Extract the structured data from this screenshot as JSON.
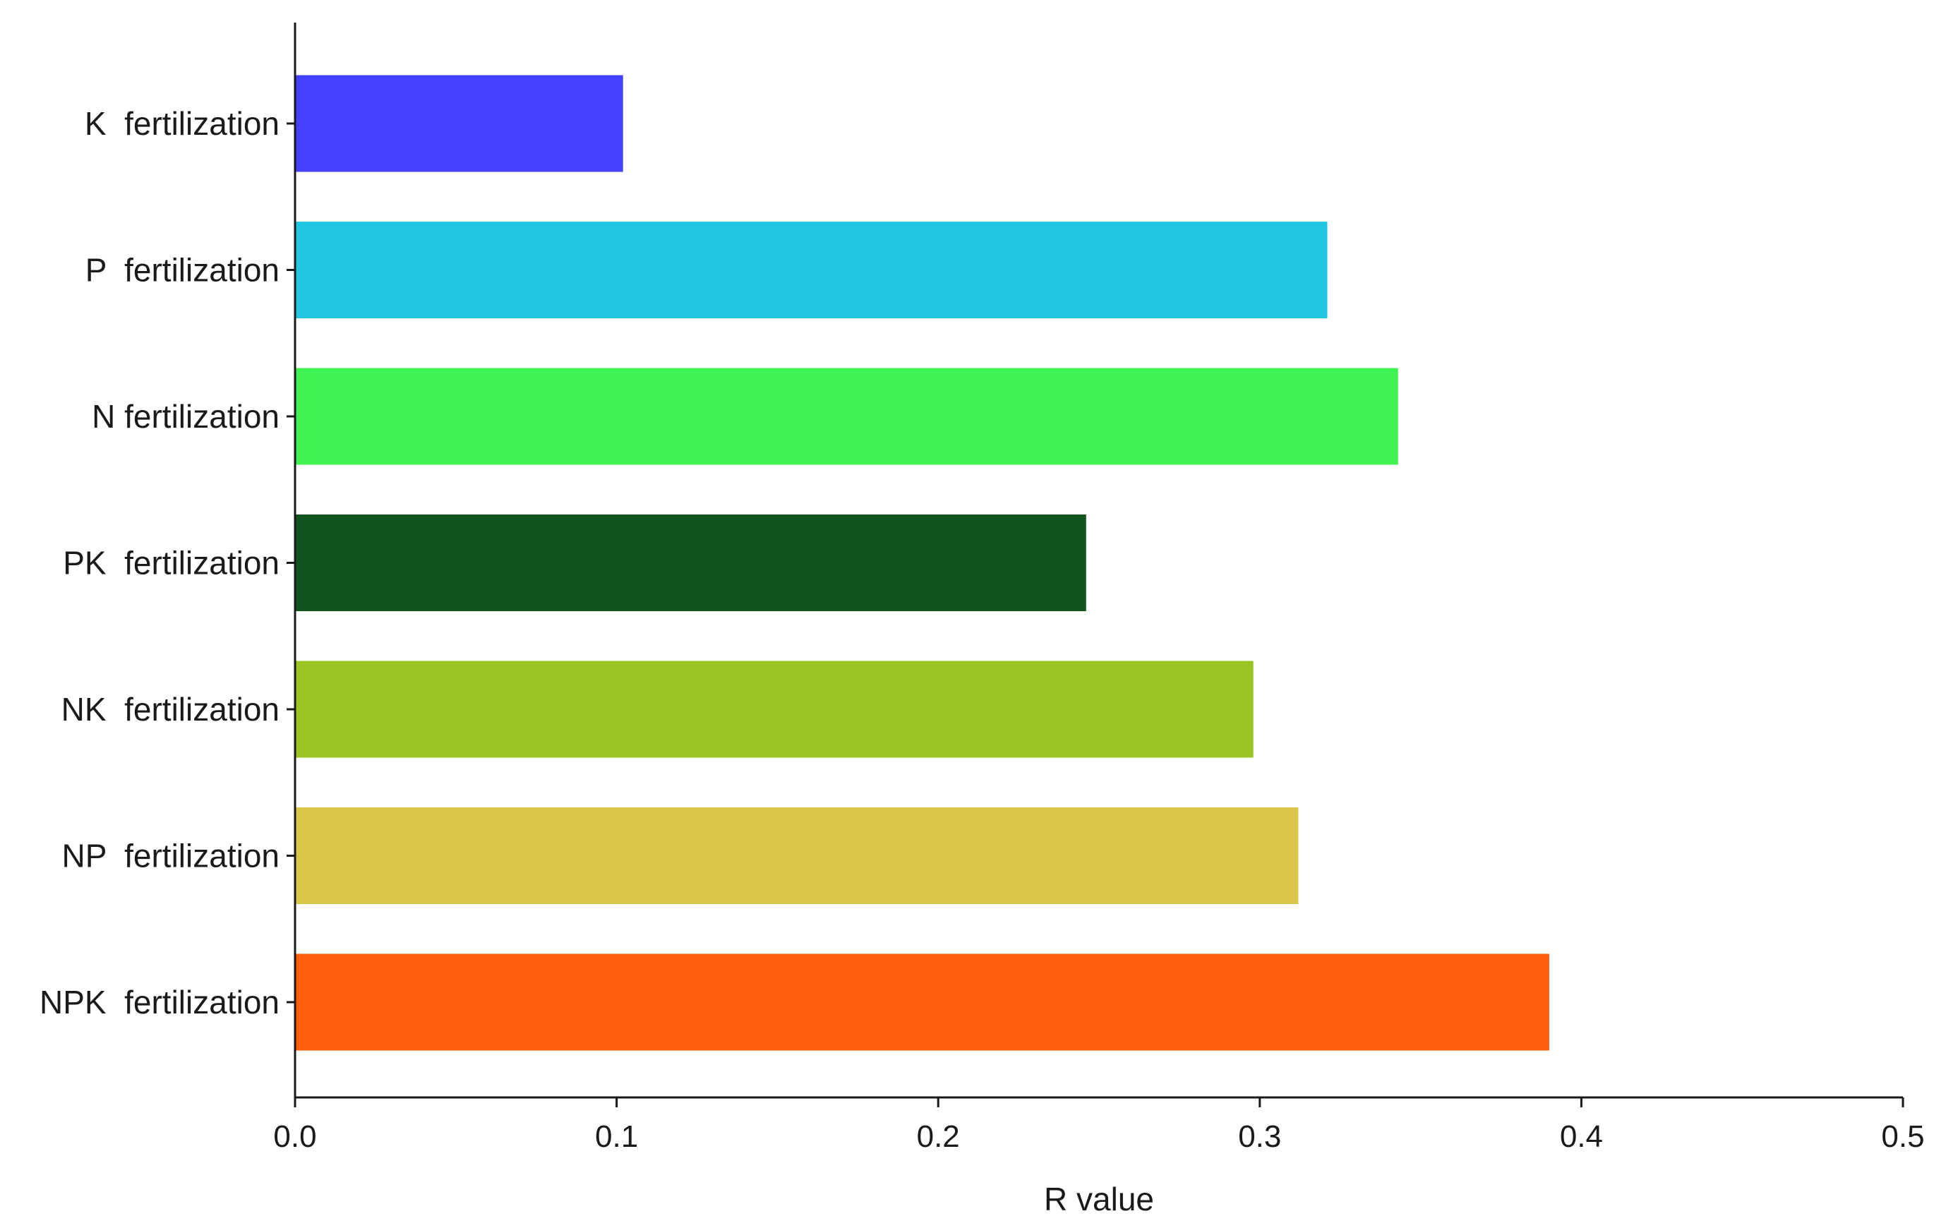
{
  "chart_data": {
    "type": "bar",
    "orientation": "horizontal",
    "categories": [
      "K  fertilization",
      "P  fertilization",
      "N fertilization",
      "PK  fertilization",
      "NK  fertilization",
      "NP  fertilization",
      "NPK  fertilization"
    ],
    "values": [
      0.102,
      0.321,
      0.343,
      0.246,
      0.298,
      0.312,
      0.39
    ],
    "colors": [
      "#4440FF",
      "#22C6E0",
      "#40F254",
      "#12541E",
      "#9AC423",
      "#D9C548",
      "#FF5F0A"
    ],
    "title": "",
    "xlabel": "R value",
    "ylabel": "",
    "xlim": [
      0,
      0.5
    ],
    "xticks": [
      0.0,
      0.1,
      0.2,
      0.3,
      0.4,
      0.5
    ],
    "xtick_labels": [
      "0.0",
      "0.1",
      "0.2",
      "0.3",
      "0.4",
      "0.5"
    ],
    "grid": false,
    "legend": "none"
  }
}
